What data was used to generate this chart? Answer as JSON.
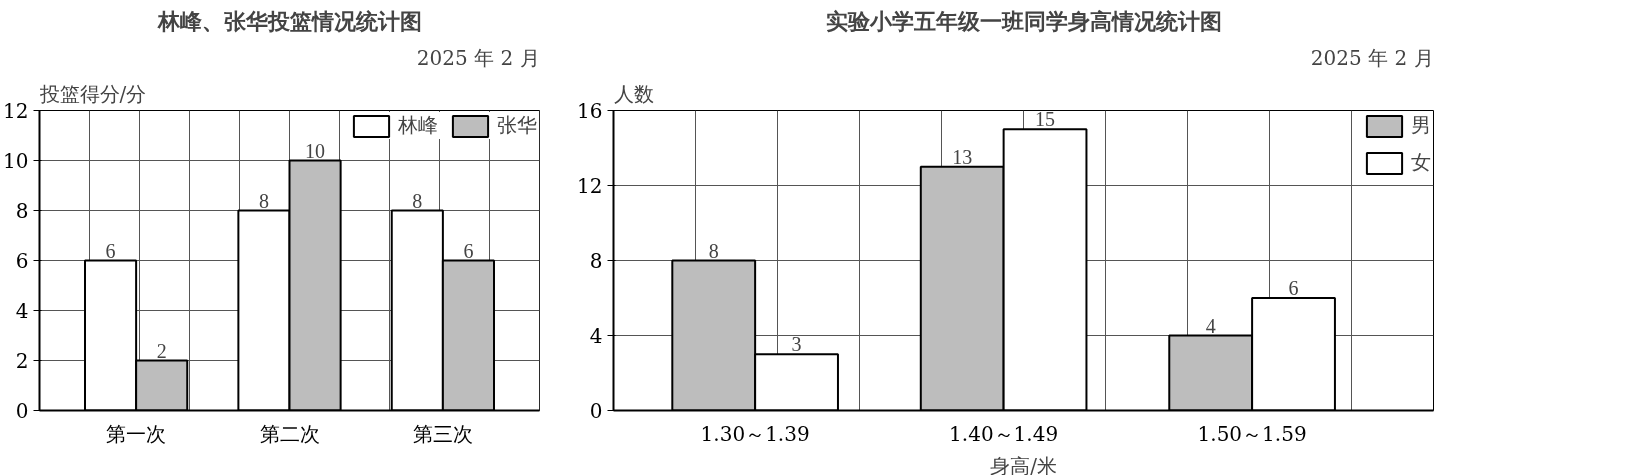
{
  "chart_data": [
    {
      "type": "bar",
      "title": "林峰、张华投篮情况统计图",
      "subtitle": "2025 年 2 月",
      "ylabel": "投篮得分/分",
      "categories": [
        "第一次",
        "第二次",
        "第三次"
      ],
      "series": [
        {
          "name": "林峰",
          "color": "#ffffff",
          "values": [
            6,
            8,
            8
          ]
        },
        {
          "name": "张华",
          "color": "#bdbdbd",
          "values": [
            2,
            10,
            6
          ]
        }
      ],
      "ylim": [
        0,
        12
      ],
      "yticks": [
        0,
        2,
        4,
        6,
        8,
        10,
        12
      ],
      "grid": true,
      "legend": "top right",
      "data_labels": true
    },
    {
      "type": "bar",
      "title": "实验小学五年级一班同学身高情况统计图",
      "subtitle": "2025 年 2 月",
      "ylabel": "人数",
      "xlabel": "身高/米",
      "categories": [
        "1.30～1.39",
        "1.40～1.49",
        "1.50～1.59"
      ],
      "series": [
        {
          "name": "男",
          "color": "#bdbdbd",
          "values": [
            8,
            13,
            4
          ]
        },
        {
          "name": "女",
          "color": "#ffffff",
          "values": [
            3,
            15,
            6
          ]
        }
      ],
      "ylim": [
        0,
        16
      ],
      "yticks": [
        0,
        4,
        8,
        12,
        16
      ],
      "grid": true,
      "legend": "right",
      "data_labels": true
    }
  ]
}
